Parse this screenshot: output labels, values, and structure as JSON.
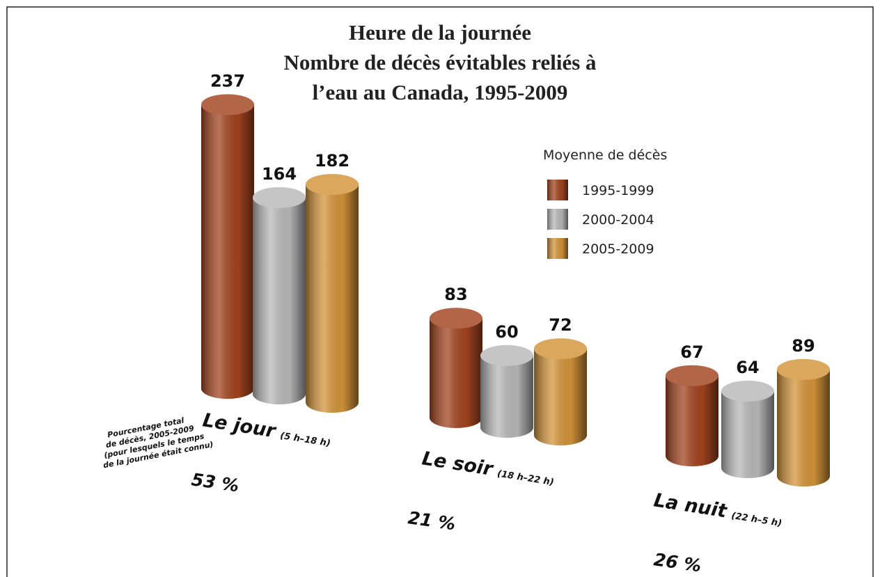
{
  "chart_data": {
    "type": "cylinder-bar",
    "title": [
      "Heure de la journée",
      "Nombre de décès évitables reliés à",
      "l’eau au Canada, 1995-2009"
    ],
    "legend_title": "Moyenne de décès",
    "categories": [
      "Le jour",
      "Le soir",
      "La nuit"
    ],
    "category_notes": [
      "(5 h–18 h)",
      "(18 h–22 h)",
      "(22 h–5 h)"
    ],
    "series": [
      {
        "name": "1995-1999",
        "color": "#a3441f",
        "values": [
          237,
          83,
          67
        ]
      },
      {
        "name": "2000-2004",
        "color": "#b9b9b9",
        "values": [
          164,
          60,
          64
        ]
      },
      {
        "name": "2005-2009",
        "color": "#d4943a",
        "values": [
          182,
          72,
          89
        ]
      }
    ],
    "share_note": [
      "Pourcentage total",
      "de décès, 2005-2009",
      "(pour lesquels le temps",
      "de la journée était connu)"
    ],
    "share": {
      "values": [
        53,
        21,
        26
      ],
      "value_labels": [
        "53 %",
        "21 %",
        "26 %"
      ]
    }
  }
}
